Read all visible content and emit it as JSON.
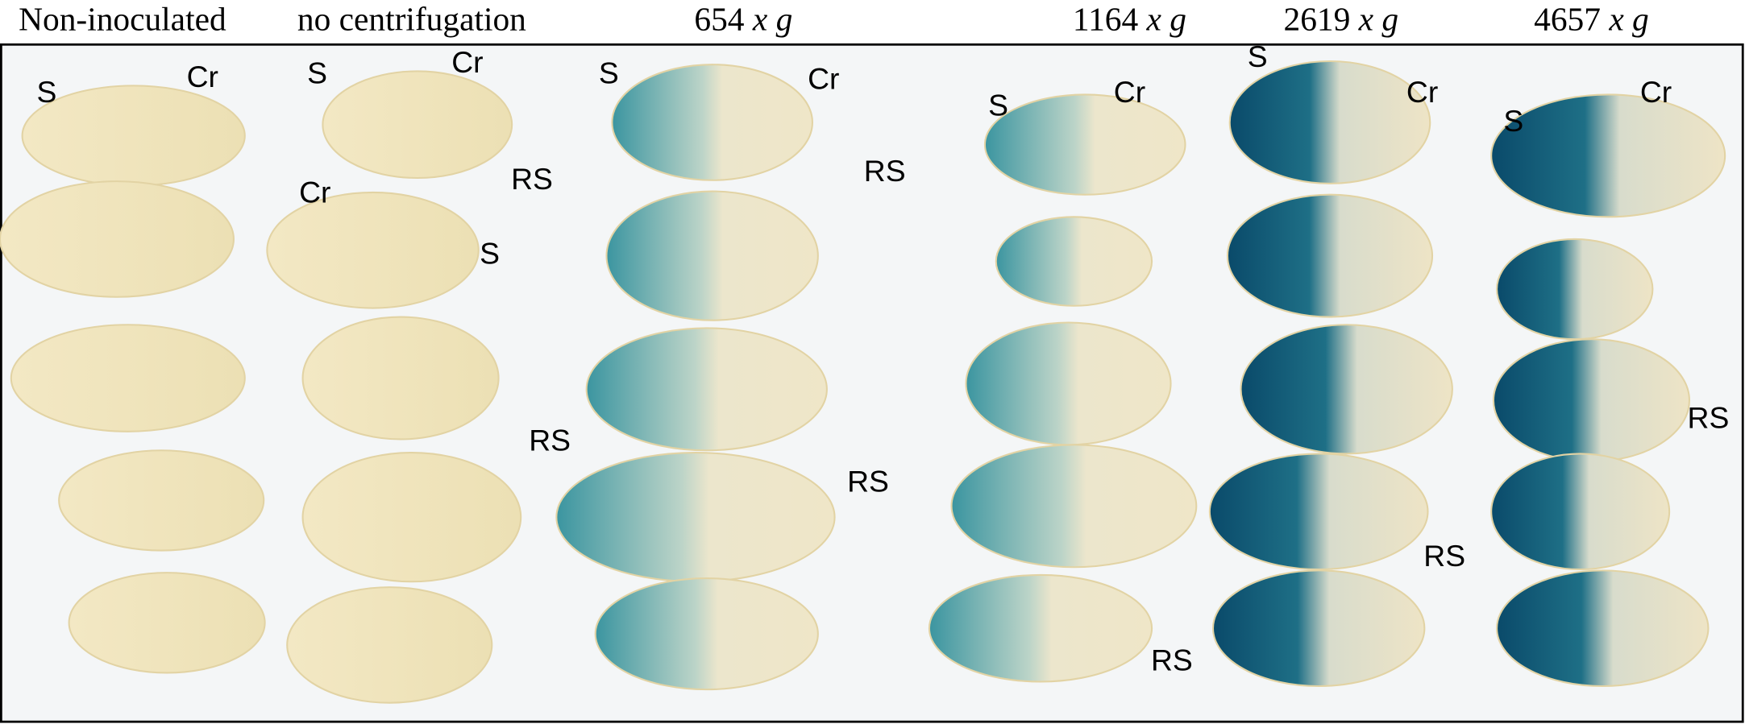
{
  "headers": [
    {
      "text": "Non-inoculated"
    },
    {
      "text": "no centrifugation"
    },
    {
      "number": "654",
      "unit": "x g"
    },
    {
      "number": "1164",
      "unit": "x g"
    },
    {
      "number": "2619",
      "unit": "x g"
    },
    {
      "number": "4657",
      "unit": "x g"
    }
  ],
  "annotations": [
    {
      "text": "S"
    },
    {
      "text": "Cr"
    },
    {
      "text": "S"
    },
    {
      "text": "Cr"
    },
    {
      "text": "RS"
    },
    {
      "text": "Cr"
    },
    {
      "text": "S"
    },
    {
      "text": "RS"
    },
    {
      "text": "S"
    },
    {
      "text": "Cr"
    },
    {
      "text": "RS"
    },
    {
      "text": "RS"
    },
    {
      "text": "S"
    },
    {
      "text": "Cr"
    },
    {
      "text": "RS"
    },
    {
      "text": "S"
    },
    {
      "text": "Cr"
    },
    {
      "text": "RS"
    },
    {
      "text": "S"
    },
    {
      "text": "Cr"
    },
    {
      "text": "RS"
    }
  ]
}
